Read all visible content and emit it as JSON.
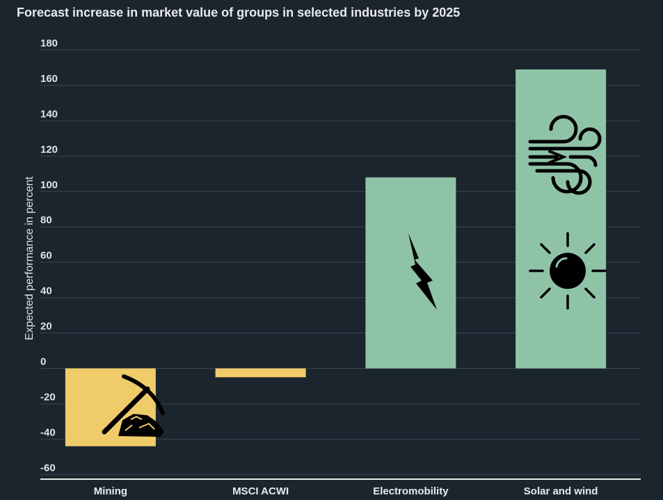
{
  "chart_data": {
    "type": "bar",
    "title": "Forecast increase in market value of groups in selected industries by 2025",
    "xlabel": "",
    "ylabel": "Expected performance in percent",
    "categories": [
      "Mining",
      "MSCI ACWI",
      "Electromobility",
      "Solar and wind"
    ],
    "values": [
      -44,
      -5,
      108,
      169
    ],
    "ylim": [
      -62,
      180
    ],
    "yticks": [
      180,
      160,
      140,
      120,
      100,
      80,
      60,
      40,
      20,
      0,
      -20,
      -40,
      -60
    ],
    "grid": true,
    "legend": "none",
    "colors": {
      "negative": "#f0cb6a",
      "positive": "#8fc3a7",
      "background": "#1b252e",
      "grid": "#3b4650",
      "icon": "#000000"
    },
    "bar_icons": [
      "pickaxe-ore-icon",
      "",
      "lightning-bolt-icon",
      "wind-and-sun-icon"
    ]
  }
}
